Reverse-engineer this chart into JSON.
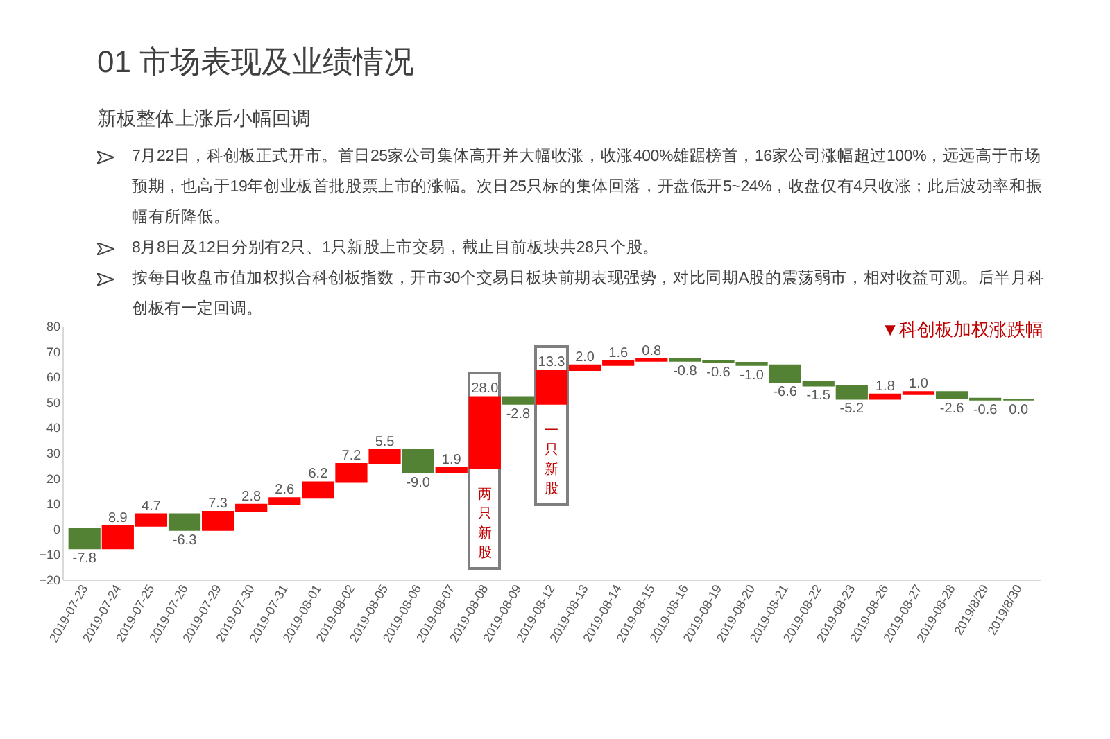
{
  "chart_data": {
    "type": "bar",
    "title": "01 市场表现及业绩情况",
    "subtitle": "新板整体上涨后小幅回调",
    "legend_title": "▼科创板加权涨跌幅",
    "annotations": [
      "7月22日，科创板正式开市。首日25家公司集体高开并大幅收涨，收涨400%雄踞榜首，16家公司涨幅超过100%，远远高于市场预期，也高于19年创业板首批股票上市的涨幅。次日25只标的集体回落，开盘低开5~24%，收盘仅有4只收涨；此后波动率和振幅有所降低。",
      "8月8日及12日分别有2只、1只新股上市交易，截止目前板块共28只个股。",
      "按每日收盘市值加权拟合科创板指数，开市30个交易日板块前期表现强势，对比同期A股的震荡弱市，相对收益可观。后半月科创板有一定回调。",
      {
        "text": "两只新股",
        "x": "2019-08-08",
        "y": 24.0
      },
      {
        "text": "一只新股",
        "x": "2019-08-12",
        "y": 49.2
      }
    ],
    "categories": [
      "2019-07-23",
      "2019-07-24",
      "2019-07-25",
      "2019-07-26",
      "2019-07-29",
      "2019-07-30",
      "2019-07-31",
      "2019-08-01",
      "2019-08-02",
      "2019-08-05",
      "2019-08-06",
      "2019-08-07",
      "2019-08-08",
      "2019-08-09",
      "2019-08-12",
      "2019-08-13",
      "2019-08-14",
      "2019-08-15",
      "2019-08-16",
      "2019-08-19",
      "2019-08-20",
      "2019-08-21",
      "2019-08-22",
      "2019-08-23",
      "2019-08-26",
      "2019-08-27",
      "2019-08-28",
      "2019/8/29",
      "2019/8/30"
    ],
    "values": [
      -7.8,
      8.9,
      4.7,
      -6.3,
      7.3,
      2.8,
      2.6,
      6.2,
      7.2,
      5.5,
      -9.0,
      1.9,
      28.0,
      -2.8,
      13.3,
      2.0,
      1.6,
      0.8,
      -0.8,
      -0.6,
      -1.0,
      -6.6,
      -1.5,
      -5.2,
      1.8,
      1.0,
      -2.6,
      -0.6,
      0.0
    ],
    "base": [
      0,
      -7.8,
      1.1,
      5.8,
      -0.5,
      6.8,
      9.6,
      12.2,
      18.4,
      25.6,
      31.1,
      22.1,
      24.0,
      52.0,
      49.2,
      62.5,
      64.5,
      66.1,
      66.9,
      66.1,
      65.5,
      64.5,
      57.9,
      56.4,
      51.2,
      53.0,
      54.0,
      51.4,
      50.8
    ],
    "value_labels": [
      "-7.8",
      "8.9",
      "4.7",
      "-6.3",
      "7.3",
      "2.8",
      "2.6",
      "6.2",
      "7.2",
      "5.5",
      "-9.0",
      "1.9",
      "28.0",
      "-2.8",
      "13.3",
      "2.0",
      "1.6",
      "0.8",
      "-0.8",
      "-0.6",
      "-1.0",
      "-6.6",
      "-1.5",
      "-5.2",
      "1.8",
      "1.0",
      "-2.6",
      "-0.6",
      "0.0"
    ],
    "colors": [
      "#548235",
      "#ff0000",
      "#ff0000",
      "#548235",
      "#ff0000",
      "#ff0000",
      "#ff0000",
      "#ff0000",
      "#ff0000",
      "#ff0000",
      "#548235",
      "#ff0000",
      "#ff0000",
      "#548235",
      "#ff0000",
      "#ff0000",
      "#ff0000",
      "#ff0000",
      "#548235",
      "#548235",
      "#548235",
      "#548235",
      "#548235",
      "#548235",
      "#ff0000",
      "#ff0000",
      "#548235",
      "#548235",
      "#548235"
    ],
    "ylim": [
      -20,
      80
    ],
    "yticks": [
      -20,
      -10,
      0,
      10,
      20,
      30,
      40,
      50,
      60,
      70,
      80
    ],
    "grid": false
  }
}
